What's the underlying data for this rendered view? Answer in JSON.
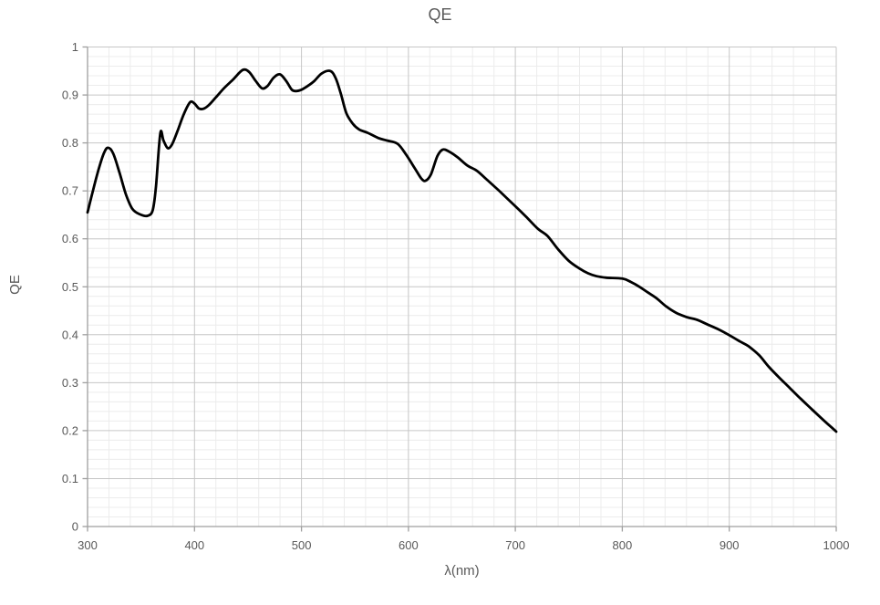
{
  "chart_data": {
    "type": "line",
    "title": "QE",
    "xlabel": "λ(nm)",
    "ylabel": "QE",
    "xlim": [
      300,
      1000
    ],
    "ylim": [
      0,
      1
    ],
    "x_ticks": [
      300,
      400,
      500,
      600,
      700,
      800,
      900,
      1000
    ],
    "y_ticks": [
      "0",
      "0.1",
      "0.2",
      "0.3",
      "0.4",
      "0.5",
      "0.6",
      "0.7",
      "0.8",
      "0.9",
      "1"
    ],
    "x_major_step": 100,
    "x_minor_step": 20,
    "y_major_step": 0.1,
    "y_minor_step": 0.02,
    "grid": "major-and-minor",
    "legend": "none",
    "colors": {
      "line": "#000000",
      "major_grid": "#c6c6c6",
      "minor_grid": "#ececec",
      "axis": "#9f9f9f",
      "text": "#595959"
    },
    "series": [
      {
        "name": "QE",
        "points": [
          [
            300,
            0.655
          ],
          [
            305,
            0.7
          ],
          [
            310,
            0.742
          ],
          [
            315,
            0.777
          ],
          [
            319,
            0.79
          ],
          [
            324,
            0.778
          ],
          [
            330,
            0.737
          ],
          [
            336,
            0.692
          ],
          [
            342,
            0.662
          ],
          [
            349,
            0.651
          ],
          [
            356,
            0.648
          ],
          [
            361,
            0.66
          ],
          [
            364,
            0.71
          ],
          [
            368,
            0.82
          ],
          [
            371,
            0.805
          ],
          [
            375,
            0.789
          ],
          [
            379,
            0.797
          ],
          [
            384,
            0.824
          ],
          [
            390,
            0.86
          ],
          [
            396,
            0.885
          ],
          [
            400,
            0.882
          ],
          [
            404,
            0.872
          ],
          [
            408,
            0.871
          ],
          [
            413,
            0.878
          ],
          [
            420,
            0.895
          ],
          [
            428,
            0.915
          ],
          [
            436,
            0.932
          ],
          [
            445,
            0.952
          ],
          [
            451,
            0.948
          ],
          [
            457,
            0.93
          ],
          [
            463,
            0.914
          ],
          [
            468,
            0.918
          ],
          [
            474,
            0.936
          ],
          [
            480,
            0.943
          ],
          [
            486,
            0.928
          ],
          [
            491,
            0.911
          ],
          [
            495,
            0.908
          ],
          [
            500,
            0.911
          ],
          [
            506,
            0.919
          ],
          [
            512,
            0.929
          ],
          [
            519,
            0.945
          ],
          [
            527,
            0.95
          ],
          [
            532,
            0.935
          ],
          [
            537,
            0.901
          ],
          [
            542,
            0.862
          ],
          [
            548,
            0.84
          ],
          [
            554,
            0.828
          ],
          [
            562,
            0.821
          ],
          [
            572,
            0.81
          ],
          [
            580,
            0.805
          ],
          [
            590,
            0.798
          ],
          [
            598,
            0.775
          ],
          [
            606,
            0.747
          ],
          [
            612,
            0.726
          ],
          [
            616,
            0.721
          ],
          [
            621,
            0.734
          ],
          [
            627,
            0.772
          ],
          [
            632,
            0.786
          ],
          [
            638,
            0.782
          ],
          [
            646,
            0.77
          ],
          [
            655,
            0.753
          ],
          [
            664,
            0.742
          ],
          [
            673,
            0.724
          ],
          [
            682,
            0.706
          ],
          [
            691,
            0.687
          ],
          [
            700,
            0.668
          ],
          [
            710,
            0.646
          ],
          [
            721,
            0.621
          ],
          [
            730,
            0.606
          ],
          [
            740,
            0.578
          ],
          [
            750,
            0.554
          ],
          [
            760,
            0.538
          ],
          [
            768,
            0.528
          ],
          [
            776,
            0.522
          ],
          [
            785,
            0.519
          ],
          [
            800,
            0.517
          ],
          [
            808,
            0.51
          ],
          [
            816,
            0.5
          ],
          [
            824,
            0.488
          ],
          [
            832,
            0.476
          ],
          [
            841,
            0.459
          ],
          [
            850,
            0.446
          ],
          [
            860,
            0.437
          ],
          [
            870,
            0.431
          ],
          [
            880,
            0.421
          ],
          [
            890,
            0.411
          ],
          [
            900,
            0.399
          ],
          [
            910,
            0.386
          ],
          [
            918,
            0.376
          ],
          [
            928,
            0.357
          ],
          [
            937,
            0.333
          ],
          [
            947,
            0.31
          ],
          [
            957,
            0.288
          ],
          [
            967,
            0.266
          ],
          [
            977,
            0.245
          ],
          [
            988,
            0.222
          ],
          [
            1000,
            0.198
          ]
        ]
      }
    ]
  }
}
